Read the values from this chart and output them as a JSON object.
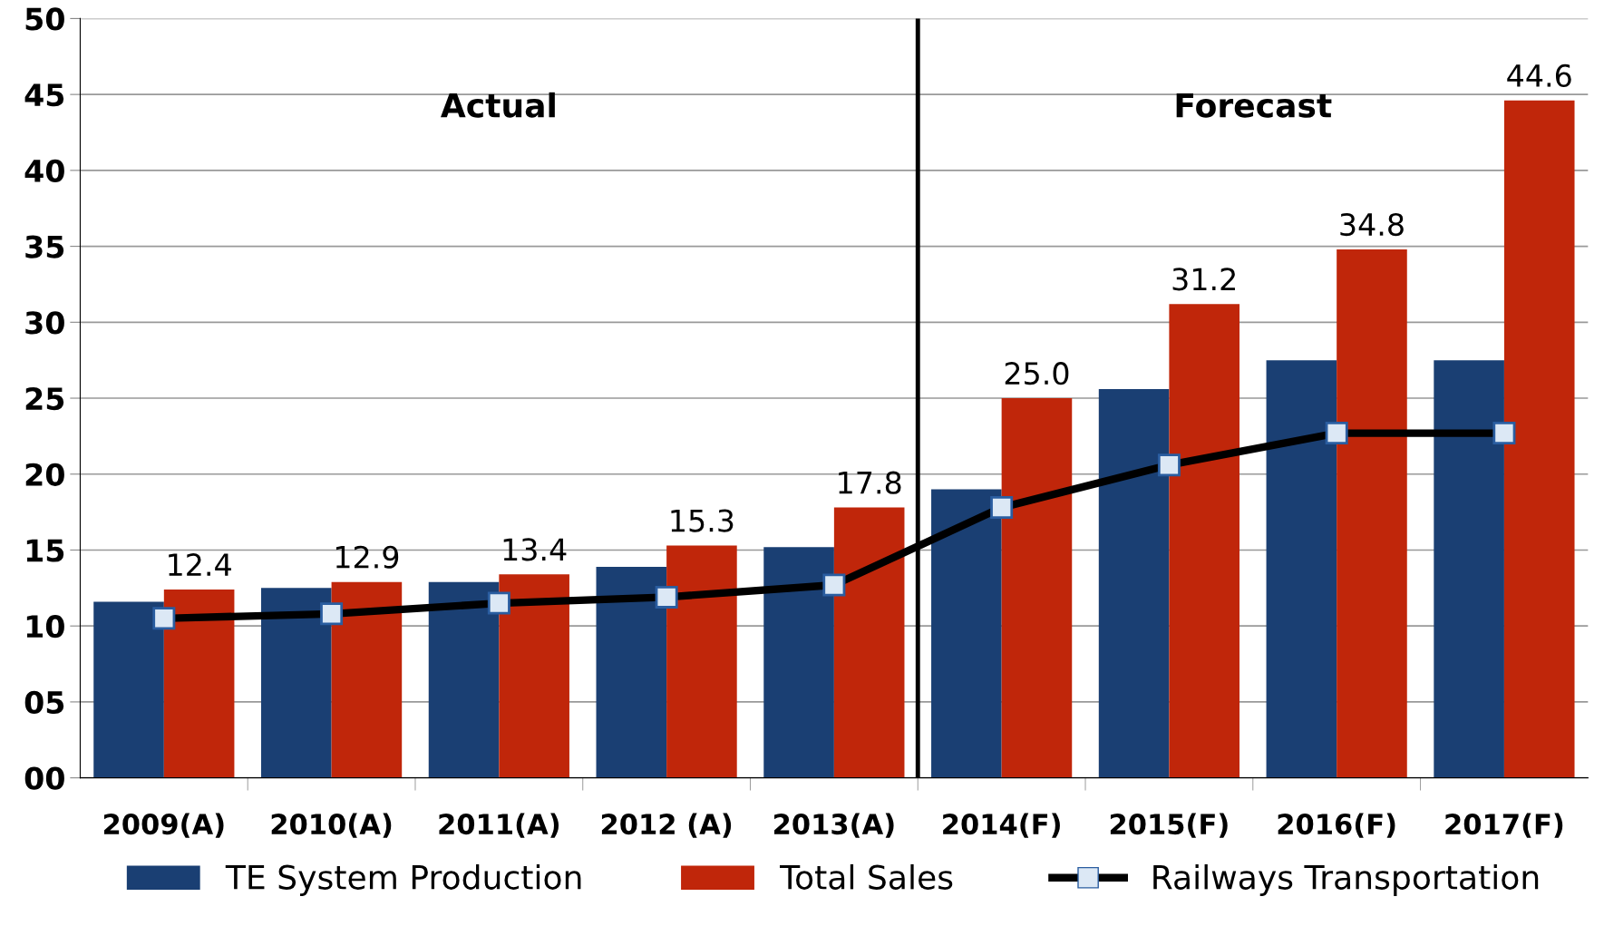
{
  "chart_data": {
    "type": "bar",
    "categories": [
      "2009(A)",
      "2010(A)",
      "2011(A)",
      "2012 (A)",
      "2013(A)",
      "2014(F)",
      "2015(F)",
      "2016(F)",
      "2017(F)"
    ],
    "series": [
      {
        "name": "TE System Production",
        "color": "#1a3f73",
        "values": [
          11.6,
          12.5,
          12.9,
          13.9,
          15.2,
          19.0,
          25.6,
          27.5,
          27.5
        ]
      },
      {
        "name": "Total Sales",
        "color": "#c0260a",
        "values": [
          12.4,
          12.9,
          13.4,
          15.3,
          17.8,
          25.0,
          31.2,
          34.8,
          44.6
        ],
        "value_labels": [
          "12.4",
          "12.9",
          "13.4",
          "15.3",
          "17.8",
          "25.0",
          "31.2",
          "34.8",
          "44.6"
        ]
      },
      {
        "name": "Railways Transportation",
        "type": "line",
        "color": "#000000",
        "marker": "square",
        "values": [
          10.5,
          10.8,
          11.5,
          11.9,
          12.7,
          17.8,
          20.6,
          22.7,
          22.7
        ]
      }
    ],
    "ylim": [
      0,
      50
    ],
    "yticks": [
      {
        "value": 0,
        "label": "00"
      },
      {
        "value": 5,
        "label": "05"
      },
      10,
      15,
      20,
      25,
      30,
      35,
      40,
      45,
      50
    ],
    "ref_lines": [
      {
        "axis": "x",
        "value": "2014(F)",
        "color": "#000000"
      }
    ],
    "annotations": [
      "Actual",
      "Forecast"
    ],
    "grid": "y",
    "legend": "bottom"
  }
}
